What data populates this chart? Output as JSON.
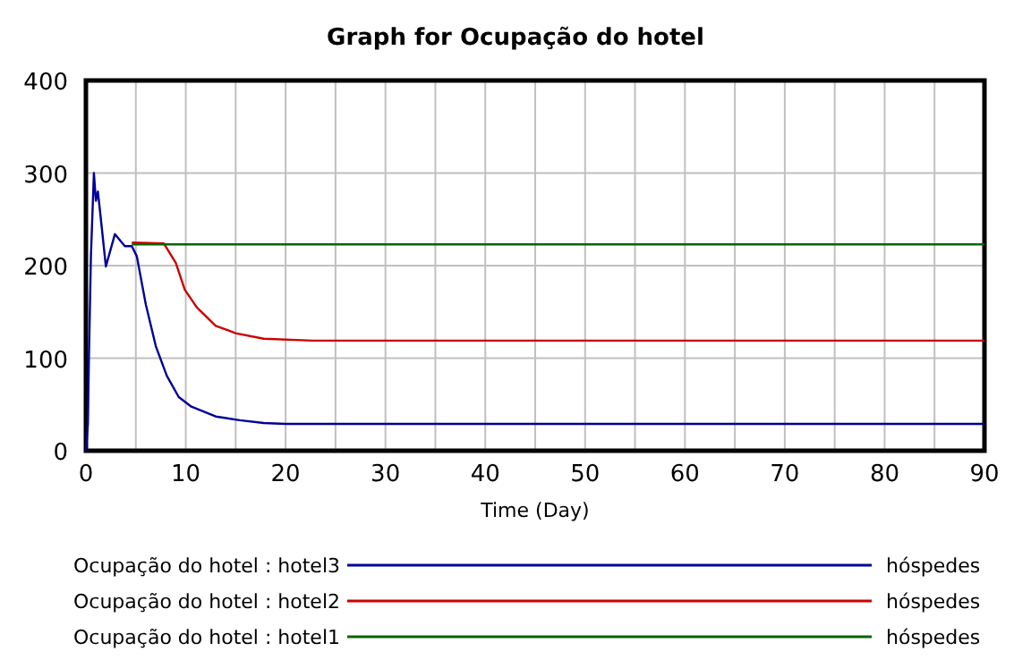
{
  "chart_data": {
    "type": "line",
    "title": "Graph for Ocupação do hotel",
    "xlabel": "Time (Day)",
    "xlim": [
      0,
      90
    ],
    "ylim": [
      0,
      400
    ],
    "xticks": [
      0,
      {
        "value": 5,
        "label": null
      },
      10,
      {
        "value": 15,
        "label": null
      },
      20,
      {
        "value": 25,
        "label": null
      },
      30,
      {
        "value": 35,
        "label": null
      },
      40,
      {
        "value": 45,
        "label": null
      },
      50,
      {
        "value": 55,
        "label": null
      },
      60,
      {
        "value": 65,
        "label": null
      },
      70,
      {
        "value": 75,
        "label": null
      },
      80,
      {
        "value": 85,
        "label": null
      },
      90
    ],
    "yticks": [
      0,
      100,
      200,
      300,
      400
    ],
    "grid": true,
    "legend": "bottom",
    "line_style": "solid",
    "annotations": [
      "hóspedes",
      "hóspedes",
      "hóspedes"
    ],
    "series": [
      {
        "name": "Ocupação do hotel : hotel3",
        "color": "#000099",
        "x": [
          0,
          0.2,
          0.3,
          0.5,
          0.8,
          1.0,
          1.2,
          1.5,
          2.0,
          2.9,
          3.9,
          4.6,
          5.1,
          6.0,
          7.0,
          8.1,
          9.3,
          10.5,
          13,
          15.4,
          17.8,
          20,
          90
        ],
        "values": [
          0,
          29,
          100,
          210,
          300,
          270,
          280,
          250,
          199,
          234,
          221,
          221,
          210,
          158,
          113,
          81,
          58,
          48,
          37,
          33,
          30,
          29,
          29
        ]
      },
      {
        "name": "Ocupação do hotel : hotel2",
        "color": "#cc0000",
        "x": [
          4.6,
          7.8,
          9,
          9.9,
          11.1,
          13,
          15,
          17.8,
          22.7,
          90
        ],
        "values": [
          225,
          224,
          203,
          174,
          155,
          135,
          127,
          121,
          119,
          119
        ]
      },
      {
        "name": "Ocupação do hotel : hotel1",
        "color": "#006600",
        "x": [
          4.6,
          90
        ],
        "values": [
          223,
          223
        ]
      }
    ]
  }
}
